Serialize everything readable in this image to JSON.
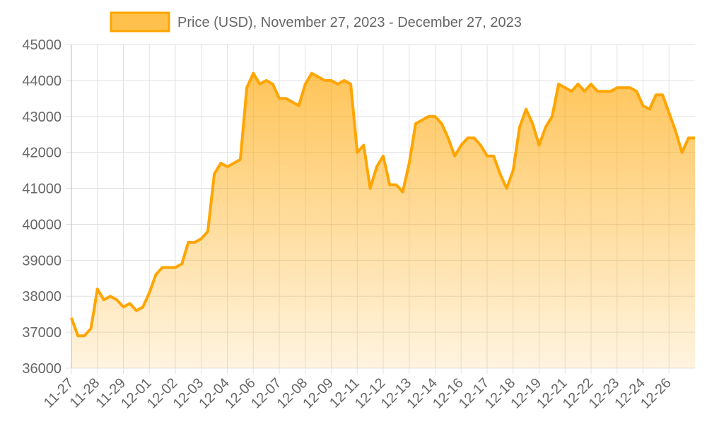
{
  "chart_data": {
    "type": "line",
    "fill": true,
    "categories": [
      "11-27",
      null,
      null,
      null,
      "11-28",
      null,
      null,
      null,
      "11-29",
      null,
      null,
      null,
      "12-01",
      null,
      null,
      null,
      "12-02",
      null,
      null,
      null,
      "12-03",
      null,
      null,
      null,
      "12-04",
      null,
      null,
      null,
      "12-06",
      null,
      null,
      null,
      "12-07",
      null,
      null,
      null,
      "12-08",
      null,
      null,
      null,
      "12-09",
      null,
      null,
      null,
      "12-11",
      null,
      null,
      null,
      "12-12",
      null,
      null,
      null,
      "12-13",
      null,
      null,
      null,
      "12-14",
      null,
      null,
      null,
      "12-16",
      null,
      null,
      null,
      "12-17",
      null,
      null,
      null,
      "12-18",
      null,
      null,
      null,
      "12-19",
      null,
      null,
      null,
      "12-21",
      null,
      null,
      null,
      "12-22",
      null,
      null,
      null,
      "12-23",
      null,
      null,
      null,
      "12-24",
      null,
      null,
      null,
      "12-26",
      null,
      null,
      null,
      null
    ],
    "series": [
      {
        "name": "Price (USD), November 27, 2023 - December 27, 2023",
        "color": "#ffa500",
        "values": [
          37400,
          36900,
          36900,
          37100,
          38200,
          37900,
          38000,
          37900,
          37700,
          37800,
          37600,
          37700,
          38100,
          38600,
          38800,
          38800,
          38800,
          38900,
          39500,
          39500,
          39600,
          39800,
          41400,
          41700,
          41600,
          41700,
          41800,
          43800,
          44200,
          43900,
          44000,
          43900,
          43500,
          43500,
          43400,
          43300,
          43900,
          44200,
          44100,
          44000,
          44000,
          43900,
          44000,
          43900,
          42000,
          42200,
          41000,
          41600,
          41900,
          41100,
          41100,
          40900,
          41700,
          42800,
          42900,
          43000,
          43000,
          42800,
          42400,
          41900,
          42200,
          42400,
          42400,
          42200,
          41900,
          41900,
          41400,
          41000,
          41500,
          42700,
          43200,
          42800,
          42200,
          42700,
          43000,
          43900,
          43800,
          43700,
          43900,
          43700,
          43900,
          43700,
          43700,
          43700,
          43800,
          43800,
          43800,
          43700,
          43300,
          43200,
          43600,
          43600,
          43100,
          42600,
          42000,
          42400,
          42400
        ]
      }
    ],
    "ylim": [
      36000,
      45000
    ],
    "yticks": [
      36000,
      37000,
      38000,
      39000,
      40000,
      41000,
      42000,
      43000,
      44000,
      45000
    ],
    "grid": true,
    "legend": "top"
  }
}
